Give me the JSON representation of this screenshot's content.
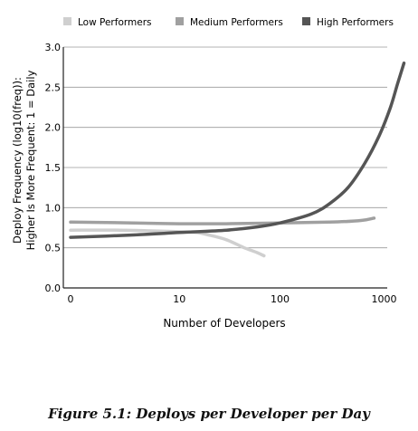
{
  "chart_data": {
    "type": "line",
    "ylabel": "Deploy Frequency (log10(freq)):",
    "ylabel2": "Higher Is More Frequent: 1 = Daily",
    "xlabel": "Number of Developers",
    "xscale": "log10(x+1)",
    "xticks": [
      {
        "value": 0,
        "label": "0"
      },
      {
        "value": 10,
        "label": "10"
      },
      {
        "value": 100,
        "label": "100"
      },
      {
        "value": 1000,
        "label": "1000"
      }
    ],
    "ylim": [
      0,
      3.0
    ],
    "yticks": [
      {
        "value": 0.0,
        "label": "0.0"
      },
      {
        "value": 0.5,
        "label": "0.5"
      },
      {
        "value": 1.0,
        "label": "1.0"
      },
      {
        "value": 1.5,
        "label": "1.5"
      },
      {
        "value": 2.0,
        "label": "2.0"
      },
      {
        "value": 2.5,
        "label": "2.5"
      },
      {
        "value": 3.0,
        "label": "3.0"
      }
    ],
    "grid": "horizontal",
    "legend_position": "top",
    "series": [
      {
        "name": "Low Performers",
        "color": "#cfcfcf",
        "points": [
          [
            0,
            0.72
          ],
          [
            2,
            0.72
          ],
          [
            5,
            0.71
          ],
          [
            10,
            0.7
          ],
          [
            15,
            0.69
          ],
          [
            20,
            0.66
          ],
          [
            30,
            0.6
          ],
          [
            45,
            0.5
          ],
          [
            60,
            0.44
          ],
          [
            70,
            0.4
          ]
        ]
      },
      {
        "name": "Medium Performers",
        "color": "#a0a0a0",
        "points": [
          [
            0,
            0.82
          ],
          [
            3,
            0.81
          ],
          [
            10,
            0.8
          ],
          [
            30,
            0.8
          ],
          [
            100,
            0.81
          ],
          [
            300,
            0.82
          ],
          [
            600,
            0.84
          ],
          [
            800,
            0.87
          ]
        ]
      },
      {
        "name": "High Performers",
        "color": "#555555",
        "points": [
          [
            0,
            0.63
          ],
          [
            3,
            0.66
          ],
          [
            10,
            0.69
          ],
          [
            30,
            0.72
          ],
          [
            60,
            0.76
          ],
          [
            100,
            0.81
          ],
          [
            200,
            0.92
          ],
          [
            300,
            1.05
          ],
          [
            450,
            1.25
          ],
          [
            650,
            1.55
          ],
          [
            900,
            1.9
          ],
          [
            1150,
            2.25
          ],
          [
            1350,
            2.55
          ],
          [
            1550,
            2.8
          ]
        ]
      }
    ]
  },
  "caption": "Figure 5.1: Deploys per Developer per Day"
}
